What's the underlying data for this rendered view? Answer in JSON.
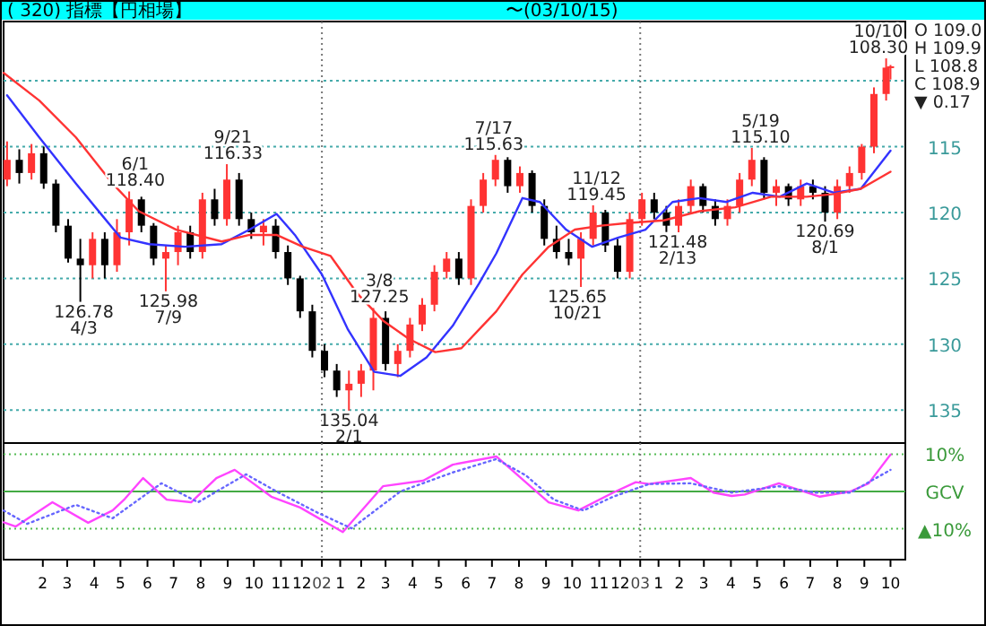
{
  "chart_data": [
    {
      "type": "candlestick",
      "title": "( 320) 指標【円相場】",
      "subtitle": "〜(03/10/15)",
      "xlim": [
        "2001-01-01",
        "2003-11-01"
      ],
      "ylim": [
        137.5,
        105.5
      ],
      "yticks": [
        {
          "value": 110,
          "label": null
        },
        115,
        120,
        125,
        130,
        135
      ],
      "grid": "y",
      "tick_labels": "y",
      "ref_lines": [
        {
          "axis": "x",
          "value": "2002-01-01",
          "color": "#777777",
          "line_style": "dotted"
        },
        {
          "axis": "x",
          "value": "2003-01-01",
          "color": "#777777",
          "line_style": "dotted"
        }
      ],
      "annotations": [
        {
          "text": "126.78\n4/3",
          "x": "2001-04-03",
          "y": 126.78
        },
        {
          "text": "6/1\n118.40",
          "x": "2001-06-01",
          "y": 118.4
        },
        {
          "text": "125.98\n7/9",
          "x": "2001-07-09",
          "y": 125.98
        },
        {
          "text": "9/21\n116.33",
          "x": "2001-09-21",
          "y": 116.33
        },
        {
          "text": "135.04\n2/1",
          "x": "2002-02-01",
          "y": 135.04
        },
        {
          "text": "3/8\n127.25",
          "x": "2002-03-08",
          "y": 127.25
        },
        {
          "text": "7/17\n115.63",
          "x": "2002-07-17",
          "y": 115.63
        },
        {
          "text": "125.65\n10/21",
          "x": "2002-10-21",
          "y": 125.65
        },
        {
          "text": "11/12\n119.45",
          "x": "2002-11-12",
          "y": 119.45
        },
        {
          "text": "121.48\n2/13",
          "x": "2003-02-13",
          "y": 121.48
        },
        {
          "text": "5/19\n115.10",
          "x": "2003-05-19",
          "y": 115.1
        },
        {
          "text": "120.69\n8/1",
          "x": "2003-08-01",
          "y": 120.69
        },
        {
          "text": "10/10\n108.30",
          "x": "2003-10-10",
          "y": 108.3
        },
        "O 109.0",
        "H 109.9",
        "L 108.8",
        "C 108.9",
        "▼ 0.17"
      ],
      "series": [
        {
          "type": "candlestick",
          "x": [
            "2001-01-05",
            "2001-01-19",
            "2001-02-02",
            "2001-02-16",
            "2001-03-02",
            "2001-03-16",
            "2001-03-30",
            "2001-04-13",
            "2001-04-27",
            "2001-05-11",
            "2001-05-25",
            "2001-06-08",
            "2001-06-22",
            "2001-07-06",
            "2001-07-20",
            "2001-08-03",
            "2001-08-17",
            "2001-08-31",
            "2001-09-14",
            "2001-09-28",
            "2001-10-12",
            "2001-10-26",
            "2001-11-09",
            "2001-11-23",
            "2001-12-07",
            "2001-12-21",
            "2002-01-04",
            "2002-01-18",
            "2002-02-01",
            "2002-02-15",
            "2002-03-01",
            "2002-03-15",
            "2002-03-29",
            "2002-04-12",
            "2002-04-26",
            "2002-05-10",
            "2002-05-24",
            "2002-06-07",
            "2002-06-21",
            "2002-07-05",
            "2002-07-19",
            "2002-08-02",
            "2002-08-16",
            "2002-08-30",
            "2002-09-13",
            "2002-09-27",
            "2002-10-11",
            "2002-10-25",
            "2002-11-08",
            "2002-11-22",
            "2002-12-06",
            "2002-12-20",
            "2003-01-03",
            "2003-01-17",
            "2003-01-31",
            "2003-02-14",
            "2003-02-28",
            "2003-03-14",
            "2003-03-28",
            "2003-04-11",
            "2003-04-25",
            "2003-05-09",
            "2003-05-23",
            "2003-06-06",
            "2003-06-20",
            "2003-07-04",
            "2003-07-18",
            "2003-08-01",
            "2003-08-15",
            "2003-08-29",
            "2003-09-12",
            "2003-09-26",
            "2003-10-10",
            "2003-10-15"
          ],
          "ohlc": [
            [
              117.5,
              118.0,
              114.6,
              116.0
            ],
            [
              116.0,
              117.8,
              115.2,
              117.0
            ],
            [
              117.0,
              117.5,
              114.8,
              115.5
            ],
            [
              115.5,
              118.2,
              115.0,
              117.8
            ],
            [
              117.8,
              121.5,
              117.5,
              121.0
            ],
            [
              121.0,
              123.8,
              120.5,
              123.5
            ],
            [
              123.5,
              126.78,
              122.0,
              124.0
            ],
            [
              124.0,
              125.0,
              121.5,
              122.0
            ],
            [
              122.0,
              125.0,
              121.5,
              124.0
            ],
            [
              124.0,
              124.5,
              120.5,
              121.5
            ],
            [
              121.5,
              122.5,
              118.4,
              119.0
            ],
            [
              119.0,
              121.5,
              118.8,
              121.0
            ],
            [
              121.0,
              124.0,
              120.8,
              123.5
            ],
            [
              123.5,
              125.98,
              122.5,
              123.0
            ],
            [
              123.0,
              124.0,
              121.0,
              121.5
            ],
            [
              121.5,
              123.5,
              121.0,
              123.0
            ],
            [
              123.0,
              123.5,
              118.5,
              119.0
            ],
            [
              119.0,
              121.0,
              118.2,
              120.5
            ],
            [
              120.5,
              121.0,
              116.33,
              117.5
            ],
            [
              117.5,
              121.0,
              117.0,
              120.5
            ],
            [
              120.5,
              122.0,
              120.0,
              121.5
            ],
            [
              121.5,
              122.5,
              120.5,
              121.0
            ],
            [
              121.0,
              123.5,
              120.5,
              123.0
            ],
            [
              123.0,
              125.5,
              122.5,
              125.0
            ],
            [
              125.0,
              128.0,
              124.8,
              127.5
            ],
            [
              127.5,
              131.0,
              127.0,
              130.5
            ],
            [
              130.5,
              132.5,
              130.0,
              132.0
            ],
            [
              132.0,
              134.0,
              131.5,
              133.5
            ],
            [
              133.5,
              135.04,
              132.0,
              133.0
            ],
            [
              133.0,
              134.0,
              131.5,
              132.0
            ],
            [
              132.0,
              133.5,
              127.25,
              128.0
            ],
            [
              128.0,
              132.0,
              127.5,
              131.5
            ],
            [
              131.5,
              132.5,
              130.0,
              130.5
            ],
            [
              130.5,
              131.0,
              128.0,
              128.5
            ],
            [
              128.5,
              129.0,
              126.5,
              127.0
            ],
            [
              127.0,
              127.5,
              124.0,
              124.5
            ],
            [
              124.5,
              125.0,
              123.0,
              123.5
            ],
            [
              123.5,
              125.5,
              123.0,
              125.0
            ],
            [
              125.0,
              125.5,
              119.0,
              119.5
            ],
            [
              119.5,
              120.0,
              117.0,
              117.5
            ],
            [
              117.5,
              118.0,
              115.63,
              116.0
            ],
            [
              116.0,
              118.5,
              115.8,
              118.0
            ],
            [
              118.0,
              118.5,
              116.5,
              117.0
            ],
            [
              117.0,
              120.0,
              116.8,
              119.5
            ],
            [
              119.5,
              122.5,
              119.0,
              122.0
            ],
            [
              122.0,
              123.5,
              121.0,
              123.0
            ],
            [
              123.0,
              124.0,
              122.0,
              123.5
            ],
            [
              123.5,
              125.65,
              121.5,
              122.0
            ],
            [
              122.0,
              122.5,
              119.45,
              120.0
            ],
            [
              120.0,
              123.0,
              119.8,
              122.5
            ],
            [
              122.5,
              125.0,
              122.0,
              124.5
            ],
            [
              124.5,
              125.0,
              120.0,
              120.5
            ],
            [
              120.5,
              121.0,
              118.5,
              119.0
            ],
            [
              119.0,
              120.5,
              118.5,
              120.0
            ],
            [
              120.0,
              121.48,
              119.5,
              121.0
            ],
            [
              121.0,
              121.5,
              119.0,
              119.5
            ],
            [
              119.5,
              120.0,
              117.5,
              118.0
            ],
            [
              118.0,
              120.0,
              117.8,
              119.5
            ],
            [
              119.5,
              121.0,
              119.0,
              120.5
            ],
            [
              120.5,
              121.0,
              119.0,
              119.5
            ],
            [
              119.5,
              120.0,
              117.0,
              117.5
            ],
            [
              117.5,
              118.0,
              115.1,
              116.0
            ],
            [
              116.0,
              119.0,
              115.8,
              118.5
            ],
            [
              118.5,
              119.5,
              117.5,
              118.0
            ],
            [
              118.0,
              119.5,
              117.8,
              119.0
            ],
            [
              119.0,
              119.5,
              117.5,
              118.0
            ],
            [
              118.0,
              119.0,
              117.5,
              118.5
            ],
            [
              118.5,
              120.69,
              118.0,
              120.0
            ],
            [
              120.0,
              120.5,
              117.5,
              118.0
            ],
            [
              118.0,
              118.5,
              116.5,
              117.0
            ],
            [
              117.0,
              117.5,
              114.8,
              115.0
            ],
            [
              115.0,
              115.5,
              110.5,
              111.0
            ],
            [
              111.0,
              111.5,
              108.3,
              109.0
            ],
            [
              109.0,
              109.9,
              108.8,
              108.9
            ]
          ],
          "colors": [
            "#ff3333",
            "#000000",
            "#ff3333",
            "#000000",
            "#000000",
            "#000000",
            "#000000",
            "#ff3333",
            "#000000",
            "#ff3333",
            "#ff3333",
            "#000000",
            "#000000",
            "#ff3333",
            "#ff3333",
            "#000000",
            "#ff3333",
            "#000000",
            "#ff3333",
            "#000000",
            "#000000",
            "#ff3333",
            "#000000",
            "#000000",
            "#000000",
            "#000000",
            "#000000",
            "#000000",
            "#ff3333",
            "#ff3333",
            "#ff3333",
            "#000000",
            "#ff3333",
            "#ff3333",
            "#ff3333",
            "#ff3333",
            "#ff3333",
            "#000000",
            "#ff3333",
            "#ff3333",
            "#ff3333",
            "#000000",
            "#ff3333",
            "#000000",
            "#000000",
            "#000000",
            "#000000",
            "#ff3333",
            "#ff3333",
            "#000000",
            "#000000",
            "#ff3333",
            "#ff3333",
            "#000000",
            "#000000",
            "#ff3333",
            "#ff3333",
            "#000000",
            "#000000",
            "#ff3333",
            "#ff3333",
            "#ff3333",
            "#000000",
            "#ff3333",
            "#000000",
            "#ff3333",
            "#000000",
            "#000000",
            "#ff3333",
            "#ff3333",
            "#ff3333",
            "#ff3333",
            "#ff3333",
            "#ff3333"
          ]
        },
        {
          "type": "line",
          "color": "#3333ff",
          "x": [
            "2001-01-05",
            "2001-02-11",
            "2001-03-25",
            "2001-04-25",
            "2001-05-15",
            "2001-06-17",
            "2001-07-28",
            "2001-09-08",
            "2001-10-10",
            "2001-11-10",
            "2001-12-01",
            "2002-01-01",
            "2002-01-31",
            "2002-03-02",
            "2002-04-01",
            "2002-05-01",
            "2002-05-31",
            "2002-06-30",
            "2002-07-20",
            "2002-08-19",
            "2002-09-08",
            "2002-10-08",
            "2002-11-07",
            "2002-12-07",
            "2003-01-07",
            "2003-02-07",
            "2003-03-10",
            "2003-04-10",
            "2003-05-10",
            "2003-06-10",
            "2003-07-11",
            "2003-08-11",
            "2003-09-11",
            "2003-10-15"
          ],
          "values": [
            111.1,
            114.3,
            117.8,
            120.3,
            121.9,
            122.4,
            122.6,
            122.4,
            121.3,
            120.1,
            121.7,
            124.7,
            128.9,
            132.1,
            132.4,
            131.0,
            128.6,
            125.4,
            123.1,
            118.9,
            119.2,
            121.3,
            122.6,
            121.9,
            121.3,
            119.2,
            118.9,
            119.2,
            118.5,
            118.8,
            117.8,
            118.5,
            118.2,
            115.3
          ]
        },
        {
          "type": "line",
          "color": "#ff3333",
          "x": [
            "2001-01-01",
            "2001-02-11",
            "2001-03-25",
            "2001-05-06",
            "2001-06-05",
            "2001-07-18",
            "2001-09-08",
            "2001-10-10",
            "2001-11-10",
            "2001-12-10",
            "2002-01-11",
            "2002-02-10",
            "2002-03-12",
            "2002-04-11",
            "2002-05-11",
            "2002-06-10",
            "2002-06-30",
            "2002-07-20",
            "2002-08-19",
            "2002-09-18",
            "2002-10-18",
            "2002-11-17",
            "2002-12-17",
            "2003-01-28",
            "2003-03-10",
            "2003-04-20",
            "2003-05-31",
            "2003-07-11",
            "2003-08-11",
            "2003-09-11",
            "2003-10-15"
          ],
          "values": [
            109.4,
            111.5,
            114.3,
            117.8,
            119.9,
            121.3,
            122.2,
            121.7,
            121.7,
            122.6,
            123.3,
            126.1,
            128.2,
            129.6,
            130.6,
            130.3,
            128.9,
            127.5,
            124.7,
            122.6,
            121.3,
            121.0,
            120.8,
            120.6,
            119.9,
            119.6,
            118.8,
            118.8,
            118.6,
            118.2,
            116.9
          ]
        }
      ]
    },
    {
      "type": "line",
      "xlim": [
        "2001-01-01",
        "2003-11-01"
      ],
      "ylim": [
        -18.3,
        13
      ],
      "yticks": [
        {
          "value": 10,
          "label": "10%"
        },
        {
          "value": 0,
          "label": "GCV"
        },
        {
          "value": -10,
          "label": "▲10%"
        }
      ],
      "xticks": [
        {
          "value": "2001-02-15",
          "label": "2"
        },
        {
          "value": "2001-03-15",
          "label": "3"
        },
        {
          "value": "2001-04-15",
          "label": "4"
        },
        {
          "value": "2001-05-15",
          "label": "5"
        },
        {
          "value": "2001-06-15",
          "label": "6"
        },
        {
          "value": "2001-07-15",
          "label": "7"
        },
        {
          "value": "2001-08-15",
          "label": "8"
        },
        {
          "value": "2001-09-15",
          "label": "9"
        },
        {
          "value": "2001-10-15",
          "label": "10"
        },
        {
          "value": "2001-11-15",
          "label": "11"
        },
        {
          "value": "2001-12-09",
          "label": "12"
        },
        {
          "value": "2002-01-01",
          "label": "02"
        },
        {
          "value": "2002-01-22",
          "label": "1"
        },
        {
          "value": "2002-02-15",
          "label": "2"
        },
        {
          "value": "2002-03-15",
          "label": "3"
        },
        {
          "value": "2002-04-15",
          "label": "4"
        },
        {
          "value": "2002-05-15",
          "label": "5"
        },
        {
          "value": "2002-06-15",
          "label": "6"
        },
        {
          "value": "2002-07-15",
          "label": "7"
        },
        {
          "value": "2002-08-15",
          "label": "8"
        },
        {
          "value": "2002-09-15",
          "label": "9"
        },
        {
          "value": "2002-10-15",
          "label": "10"
        },
        {
          "value": "2002-11-15",
          "label": "11"
        },
        {
          "value": "2002-12-09",
          "label": "12"
        },
        {
          "value": "2003-01-01",
          "label": "03"
        },
        {
          "value": "2003-01-22",
          "label": "1"
        },
        {
          "value": "2003-02-15",
          "label": "2"
        },
        {
          "value": "2003-03-15",
          "label": "3"
        },
        {
          "value": "2003-04-15",
          "label": "4"
        },
        {
          "value": "2003-05-15",
          "label": "5"
        },
        {
          "value": "2003-06-15",
          "label": "6"
        },
        {
          "value": "2003-07-15",
          "label": "7"
        },
        {
          "value": "2003-08-15",
          "label": "8"
        },
        {
          "value": "2003-09-15",
          "label": "9"
        },
        {
          "value": "2003-10-15",
          "label": "10"
        }
      ],
      "ref_lines": [
        {
          "axis": "y",
          "value": 10,
          "color": "#55bb55",
          "line_style": "dotted"
        },
        {
          "axis": "y",
          "value": 0,
          "color": "#44aa44",
          "line_style": "solid"
        },
        {
          "axis": "y",
          "value": -10,
          "color": "#55bb55",
          "line_style": "dotted"
        },
        {
          "axis": "x",
          "value": "2002-01-01",
          "color": "#777777",
          "line_style": "dotted"
        },
        {
          "axis": "x",
          "value": "2003-01-01",
          "color": "#777777",
          "line_style": "dotted"
        }
      ],
      "series": [
        {
          "color": "#ff44ff",
          "line_style": "solid",
          "x": [
            "2001-01-01",
            "2001-01-15",
            "2001-02-26",
            "2001-04-08",
            "2001-05-06",
            "2001-05-20",
            "2001-06-10",
            "2001-07-07",
            "2001-08-04",
            "2001-09-02",
            "2001-09-23",
            "2001-11-04",
            "2001-12-07",
            "2002-01-25",
            "2002-03-12",
            "2002-04-27",
            "2002-05-31",
            "2002-07-20",
            "2002-09-18",
            "2002-10-22",
            "2002-12-01",
            "2002-12-27",
            "2003-01-11",
            "2003-02-28",
            "2003-03-26",
            "2003-04-16",
            "2003-05-01",
            "2003-06-09",
            "2003-07-26",
            "2003-08-30",
            "2003-09-20",
            "2003-10-15"
          ],
          "values": [
            -8.3,
            -9.4,
            -2.9,
            -8.4,
            -5.1,
            -2.0,
            3.6,
            -2.2,
            -2.9,
            3.6,
            5.8,
            -1.4,
            -4.3,
            -10.9,
            1.4,
            2.9,
            7.2,
            9.4,
            -2.9,
            -5.1,
            -0.3,
            2.5,
            2.0,
            3.6,
            -0.3,
            -1.2,
            -0.8,
            2.2,
            -1.4,
            0.0,
            2.2,
            9.9
          ]
        },
        {
          "color": "#6666ff",
          "line_style": "dotted",
          "x": [
            "2001-01-01",
            "2001-01-28",
            "2001-03-25",
            "2001-05-06",
            "2001-07-01",
            "2001-08-12",
            "2001-10-06",
            "2001-11-10",
            "2001-12-28",
            "2002-02-04",
            "2002-04-01",
            "2002-05-31",
            "2002-07-20",
            "2002-08-23",
            "2002-09-24",
            "2002-10-28",
            "2002-12-01",
            "2003-01-11",
            "2003-02-28",
            "2003-04-16",
            "2003-06-09",
            "2003-07-20",
            "2003-08-30",
            "2003-10-15"
          ],
          "values": [
            -5.1,
            -8.7,
            -3.6,
            -7.2,
            2.2,
            -2.9,
            4.6,
            0.0,
            -5.8,
            -9.9,
            0.0,
            5.1,
            8.7,
            4.3,
            -2.2,
            -5.1,
            -1.4,
            2.0,
            2.2,
            -0.3,
            1.4,
            -0.3,
            -0.3,
            5.8
          ]
        }
      ]
    }
  ]
}
